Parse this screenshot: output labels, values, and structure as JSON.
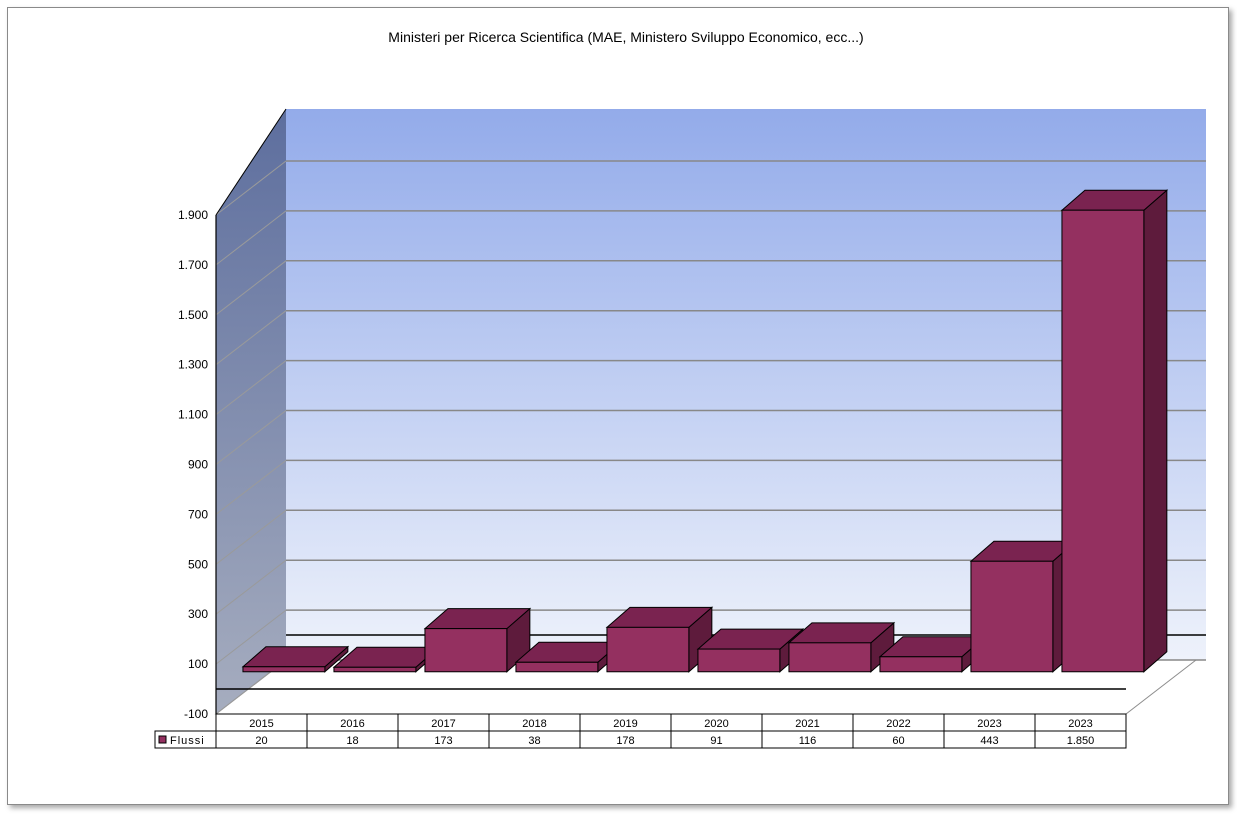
{
  "chart_data": {
    "type": "bar",
    "title": "Ministeri per Ricerca Scientifica (MAE, Ministero Sviluppo  Economico, ecc...)",
    "categories": [
      "2015",
      "2016",
      "2017",
      "2018",
      "2019",
      "2020",
      "2021",
      "2022",
      "2023",
      "2023"
    ],
    "series": [
      {
        "name": "Flussi",
        "values": [
          20,
          18,
          173,
          38,
          178,
          91,
          116,
          60,
          443,
          1850
        ],
        "value_labels": [
          "20",
          "18",
          "173",
          "38",
          "178",
          "91",
          "116",
          "60",
          "443",
          "1.850"
        ],
        "color": "#943060"
      }
    ],
    "ylim": [
      -100,
      1900
    ],
    "yticks": [
      -100,
      100,
      300,
      500,
      700,
      900,
      1100,
      1300,
      1500,
      1700,
      1900
    ],
    "ytick_labels": [
      "-100",
      "100",
      "300",
      "500",
      "700",
      "900",
      "1.100",
      "1.300",
      "1.500",
      "1.700",
      "1.900"
    ],
    "grid": true,
    "legend": "data-table",
    "three_d": true,
    "colors": {
      "bar_front": "#943060",
      "bar_top": "#7a2350",
      "bar_side": "#5e1b3c",
      "wall_top": "#93abea",
      "wall_bottom": "#eef2fb"
    }
  }
}
